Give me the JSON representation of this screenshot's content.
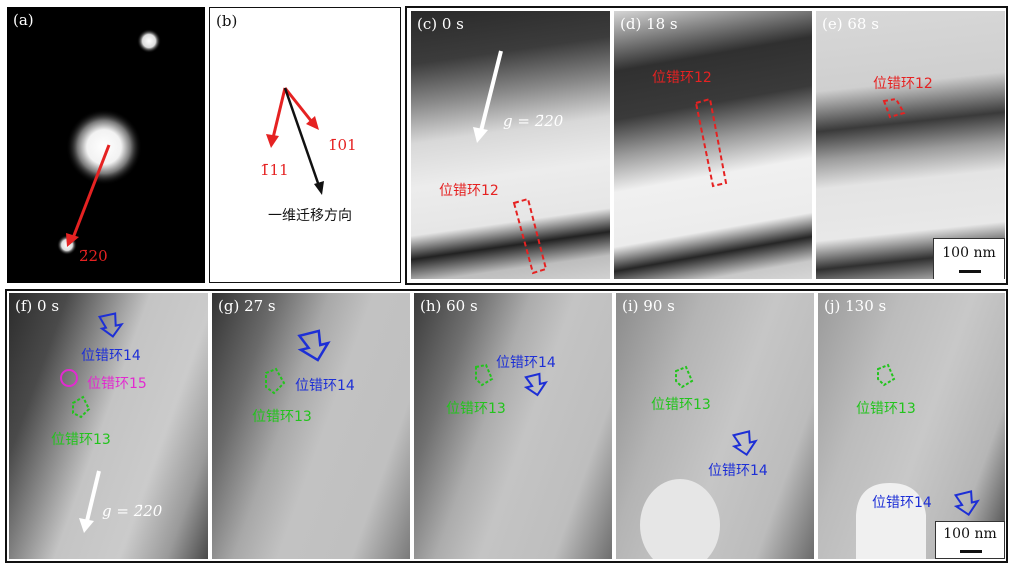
{
  "panels": {
    "a": {
      "label": "(a)",
      "spot_label": "2̄20"
    },
    "b": {
      "label": "(b)",
      "vec1": "1̄11",
      "vec2": "1̄01",
      "direction": "一维迁移方向"
    },
    "c": {
      "label": "(c) 0 s",
      "g": "g = 2̄20",
      "loop": "位错环12"
    },
    "d": {
      "label": "(d) 18 s",
      "loop": "位错环12"
    },
    "e": {
      "label": "(e) 68 s",
      "loop": "位错环12",
      "scale": "100 nm"
    },
    "f": {
      "label": "(f) 0 s",
      "loop14": "位错环14",
      "loop15": "位错环15",
      "loop13": "位错环13",
      "g": "g = 2̄20"
    },
    "g": {
      "label": "(g) 27 s",
      "loop14": "位错环14",
      "loop13": "位错环13"
    },
    "h": {
      "label": "(h) 60 s",
      "loop14": "位错环14",
      "loop13": "位错环13"
    },
    "i": {
      "label": "(i) 90 s",
      "loop13": "位错环13",
      "loop14": "位错环14"
    },
    "j": {
      "label": "(j) 130 s",
      "loop13": "位错环13",
      "loop14": "位错环14",
      "scale": "100 nm"
    }
  },
  "colors": {
    "red": "#e52222",
    "blue": "#1d2fd6",
    "green": "#22c41c",
    "magenta": "#e22ad0"
  }
}
